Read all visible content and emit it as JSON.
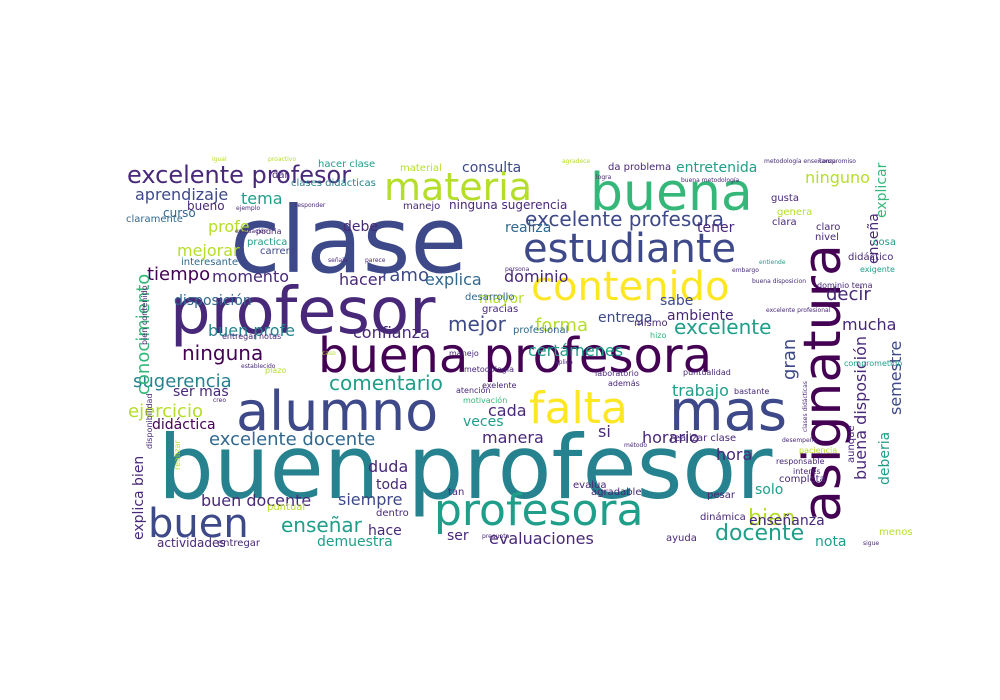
{
  "palette": {
    "dark_purple": "#440154",
    "purple": "#482878",
    "indigo": "#3e4989",
    "blue": "#31688e",
    "steel": "#26828e",
    "teal": "#1f9e89",
    "green": "#35b779",
    "light_green": "#6ece58",
    "lime": "#b5de2b",
    "yellow": "#fde725"
  },
  "words": [
    {
      "text": "buen profesor",
      "color": "steel"
    },
    {
      "text": "clase",
      "color": "indigo"
    },
    {
      "text": "profesor",
      "color": "purple"
    },
    {
      "text": "buena profesora",
      "color": "dark_purple"
    },
    {
      "text": "alumno",
      "color": "indigo"
    },
    {
      "text": "asignatura",
      "color": "dark_purple"
    },
    {
      "text": "buena",
      "color": "green"
    },
    {
      "text": "materia",
      "color": "lime"
    },
    {
      "text": "estudiante",
      "color": "indigo"
    },
    {
      "text": "contenido",
      "color": "yellow"
    },
    {
      "text": "falta",
      "color": "yellow"
    },
    {
      "text": "mas",
      "color": "indigo"
    },
    {
      "text": "profesora",
      "color": "teal"
    },
    {
      "text": "buen",
      "color": "indigo"
    },
    {
      "text": "excelente profesor",
      "color": "purple"
    },
    {
      "text": "excelente profesora",
      "color": "indigo"
    },
    {
      "text": "comentario",
      "color": "teal"
    },
    {
      "text": "sugerencia",
      "color": "steel"
    },
    {
      "text": "excelente docente",
      "color": "blue"
    },
    {
      "text": "docente",
      "color": "teal"
    },
    {
      "text": "ninguna",
      "color": "dark_purple"
    },
    {
      "text": "evaluaciones",
      "color": "purple"
    },
    {
      "text": "enseñar",
      "color": "teal"
    },
    {
      "text": "mejor",
      "color": "indigo"
    },
    {
      "text": "excelente",
      "color": "teal"
    },
    {
      "text": "buena disposición",
      "color": "purple"
    },
    {
      "text": "conocimiento",
      "color": "green"
    },
    {
      "text": "explica bien",
      "color": "purple"
    },
    {
      "text": "ejercicio",
      "color": "lime"
    },
    {
      "text": "forma",
      "color": "lime"
    },
    {
      "text": "ramo",
      "color": "indigo"
    },
    {
      "text": "bien",
      "color": "lime"
    },
    {
      "text": "aprendizaje",
      "color": "indigo"
    },
    {
      "text": "tiempo",
      "color": "dark_purple"
    },
    {
      "text": "momento",
      "color": "purple"
    },
    {
      "text": "hacer",
      "color": "purple"
    },
    {
      "text": "explica",
      "color": "blue"
    },
    {
      "text": "dominio",
      "color": "purple"
    },
    {
      "text": "decir",
      "color": "purple"
    },
    {
      "text": "gran",
      "color": "indigo"
    },
    {
      "text": "mucha",
      "color": "purple"
    },
    {
      "text": "semestre",
      "color": "indigo"
    },
    {
      "text": "deberia",
      "color": "teal"
    },
    {
      "text": "explicar",
      "color": "green"
    },
    {
      "text": "enseña",
      "color": "purple"
    },
    {
      "text": "ninguno",
      "color": "lime"
    },
    {
      "text": "entretenida",
      "color": "teal"
    },
    {
      "text": "consulta",
      "color": "indigo"
    },
    {
      "text": "tema",
      "color": "teal"
    },
    {
      "text": "profe",
      "color": "lime"
    },
    {
      "text": "mejorar",
      "color": "lime"
    },
    {
      "text": "disposición",
      "color": "blue"
    },
    {
      "text": "buen profe",
      "color": "steel"
    },
    {
      "text": "confianza",
      "color": "purple"
    },
    {
      "text": "entrega",
      "color": "indigo"
    },
    {
      "text": "ambiente",
      "color": "purple"
    },
    {
      "text": "certámenes",
      "color": "teal"
    },
    {
      "text": "trabajo",
      "color": "teal"
    },
    {
      "text": "hora",
      "color": "purple"
    },
    {
      "text": "si",
      "color": "purple"
    },
    {
      "text": "horario",
      "color": "purple"
    },
    {
      "text": "manera",
      "color": "purple"
    },
    {
      "text": "cada",
      "color": "purple"
    },
    {
      "text": "veces",
      "color": "teal"
    },
    {
      "text": "duda",
      "color": "purple"
    },
    {
      "text": "toda",
      "color": "purple"
    },
    {
      "text": "siempre",
      "color": "indigo"
    },
    {
      "text": "buen docente",
      "color": "purple"
    },
    {
      "text": "hace",
      "color": "purple"
    },
    {
      "text": "demuestra",
      "color": "teal"
    },
    {
      "text": "actividades",
      "color": "purple"
    },
    {
      "text": "entregar",
      "color": "purple"
    },
    {
      "text": "ser",
      "color": "purple"
    },
    {
      "text": "enseñanza",
      "color": "purple"
    },
    {
      "text": "nota",
      "color": "teal"
    },
    {
      "text": "solo",
      "color": "teal"
    },
    {
      "text": "sabe",
      "color": "indigo"
    },
    {
      "text": "mayor",
      "color": "lime"
    },
    {
      "text": "didáctica",
      "color": "dark_purple"
    },
    {
      "text": "ser mas",
      "color": "purple"
    },
    {
      "text": "debe",
      "color": "purple"
    },
    {
      "text": "realiza",
      "color": "blue"
    },
    {
      "text": "tener",
      "color": "purple"
    },
    {
      "text": "bueno",
      "color": "purple"
    },
    {
      "text": "curso",
      "color": "blue"
    },
    {
      "text": "claramente",
      "color": "blue"
    },
    {
      "text": "practica",
      "color": "teal"
    },
    {
      "text": "carrera",
      "color": "indigo"
    },
    {
      "text": "podria",
      "color": "purple"
    },
    {
      "text": "interesante",
      "color": "blue"
    },
    {
      "text": "hacer clase",
      "color": "teal"
    },
    {
      "text": "dar",
      "color": "purple"
    },
    {
      "text": "clases didácticas",
      "color": "steel"
    },
    {
      "text": "manejo",
      "color": "purple"
    },
    {
      "text": "ninguna sugerencia",
      "color": "purple"
    },
    {
      "text": "material",
      "color": "lime"
    },
    {
      "text": "da problema",
      "color": "purple"
    },
    {
      "text": "gusta",
      "color": "purple"
    },
    {
      "text": "genera",
      "color": "lime"
    },
    {
      "text": "clara",
      "color": "purple"
    },
    {
      "text": "claro",
      "color": "purple"
    },
    {
      "text": "nivel",
      "color": "purple"
    },
    {
      "text": "cosa",
      "color": "teal"
    },
    {
      "text": "didáctico",
      "color": "purple"
    },
    {
      "text": "exigente",
      "color": "teal"
    },
    {
      "text": "desarrollo",
      "color": "blue"
    },
    {
      "text": "gracias",
      "color": "purple"
    },
    {
      "text": "profesional",
      "color": "blue"
    },
    {
      "text": "mismo",
      "color": "purple"
    },
    {
      "text": "hizo",
      "color": "green"
    },
    {
      "text": "dominio tema",
      "color": "purple"
    },
    {
      "text": "excelente profesional",
      "color": "purple"
    },
    {
      "text": "bien contenido",
      "color": "purple"
    },
    {
      "text": "entregar notas",
      "color": "purple"
    },
    {
      "text": "establecido",
      "color": "purple"
    },
    {
      "text": "plazo",
      "color": "lime"
    },
    {
      "text": "manejo",
      "color": "purple"
    },
    {
      "text": "metodología",
      "color": "purple"
    },
    {
      "text": "exelente",
      "color": "purple"
    },
    {
      "text": "laboratorio",
      "color": "purple"
    },
    {
      "text": "puntualidad",
      "color": "purple"
    },
    {
      "text": "atención",
      "color": "purple"
    },
    {
      "text": "además",
      "color": "purple"
    },
    {
      "text": "bastante",
      "color": "purple"
    },
    {
      "text": "motivación",
      "color": "green"
    },
    {
      "text": "realizar clase",
      "color": "purple"
    },
    {
      "text": "agradable",
      "color": "purple"
    },
    {
      "text": "tan",
      "color": "purple"
    },
    {
      "text": "evalua",
      "color": "purple"
    },
    {
      "text": "pesar",
      "color": "purple"
    },
    {
      "text": "interés",
      "color": "purple"
    },
    {
      "text": "completa",
      "color": "purple"
    },
    {
      "text": "responsable",
      "color": "purple"
    },
    {
      "text": "aunque",
      "color": "purple"
    },
    {
      "text": "paciencia",
      "color": "lime"
    },
    {
      "text": "puntual",
      "color": "lime"
    },
    {
      "text": "dentro",
      "color": "purple"
    },
    {
      "text": "dinámica",
      "color": "purple"
    },
    {
      "text": "ayuda",
      "color": "purple"
    },
    {
      "text": "menos",
      "color": "lime"
    },
    {
      "text": "comprometido",
      "color": "teal"
    },
    {
      "text": "realizar",
      "color": "lime"
    },
    {
      "text": "disponibilidad",
      "color": "purple"
    },
    {
      "text": "compromiso",
      "color": "purple"
    },
    {
      "text": "metodología enseñanza",
      "color": "purple"
    },
    {
      "text": "buena disposicion",
      "color": "purple"
    },
    {
      "text": "entiende",
      "color": "teal"
    },
    {
      "text": "pregunta",
      "color": "purple"
    },
    {
      "text": "responder",
      "color": "purple"
    },
    {
      "text": "evaluación",
      "color": "purple"
    },
    {
      "text": "método",
      "color": "purple"
    },
    {
      "text": "agradece",
      "color": "lime"
    },
    {
      "text": "proactivo",
      "color": "lime"
    },
    {
      "text": "igual",
      "color": "lime"
    },
    {
      "text": "ejemplo",
      "color": "purple"
    },
    {
      "text": "caso",
      "color": "lime"
    },
    {
      "text": "creo",
      "color": "purple"
    },
    {
      "text": "sigue",
      "color": "purple"
    },
    {
      "text": "parece",
      "color": "purple"
    },
    {
      "text": "buena metodología",
      "color": "purple"
    },
    {
      "text": "clases didácticas",
      "color": "purple"
    },
    {
      "text": "desempeño",
      "color": "purple"
    },
    {
      "text": "embargo",
      "color": "purple"
    },
    {
      "text": "logra",
      "color": "purple"
    },
    {
      "text": "aplica",
      "color": "purple"
    },
    {
      "text": "persona",
      "color": "purple"
    },
    {
      "text": "señala",
      "color": "purple"
    }
  ]
}
